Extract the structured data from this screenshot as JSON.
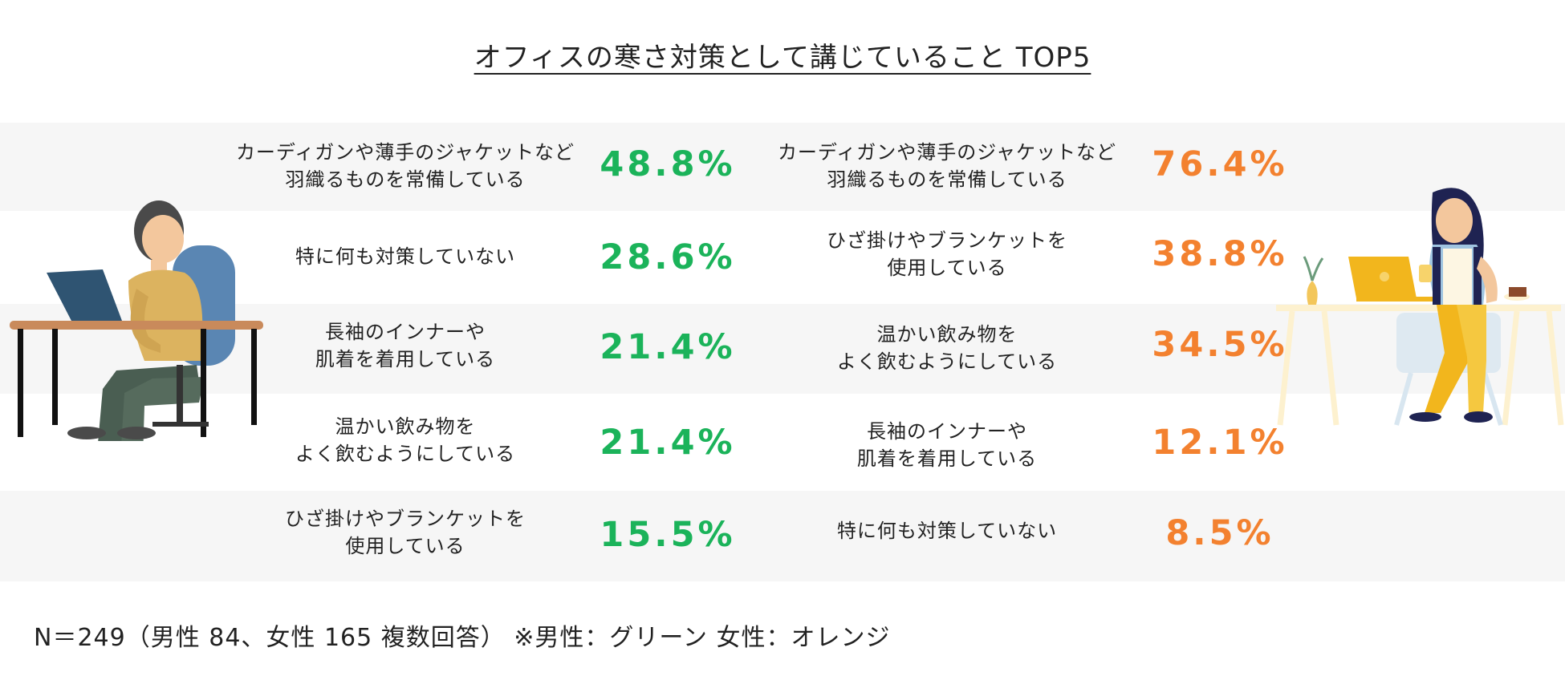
{
  "title": "オフィスの寒さ対策として講じていること TOP5",
  "chart_data": {
    "type": "table",
    "title": "オフィスの寒さ対策として講じていること TOP5",
    "series": [
      {
        "name": "男性",
        "color": "#1bb35a",
        "items": [
          {
            "label": "カーディガンや薄手のジャケットなど\n羽織るものを常備している",
            "value": 48.8,
            "value_label": "48.8%"
          },
          {
            "label": "特に何も対策していない",
            "value": 28.6,
            "value_label": "28.6%"
          },
          {
            "label": "長袖のインナーや\n肌着を着用している",
            "value": 21.4,
            "value_label": "21.4%"
          },
          {
            "label": "温かい飲み物を\nよく飲むようにしている",
            "value": 21.4,
            "value_label": "21.4%"
          },
          {
            "label": "ひざ掛けやブランケットを\n使用している",
            "value": 15.5,
            "value_label": "15.5%"
          }
        ]
      },
      {
        "name": "女性",
        "color": "#f3812f",
        "items": [
          {
            "label": "カーディガンや薄手のジャケットなど\n羽織るものを常備している",
            "value": 76.4,
            "value_label": "76.4%"
          },
          {
            "label": "ひざ掛けやブランケットを\n使用している",
            "value": 38.8,
            "value_label": "38.8%"
          },
          {
            "label": "温かい飲み物を\nよく飲むようにしている",
            "value": 34.5,
            "value_label": "34.5%"
          },
          {
            "label": "長袖のインナーや\n肌着を着用している",
            "value": 12.1,
            "value_label": "12.1%"
          },
          {
            "label": "特に何も対策していない",
            "value": 8.5,
            "value_label": "8.5%"
          }
        ]
      }
    ]
  },
  "footer": "N＝249（男性 84、女性 165 複数回答） ※男性：グリーン 女性：オレンジ",
  "colors": {
    "band_shade": "#f6f6f6",
    "male": "#1bb35a",
    "female": "#f3812f"
  }
}
